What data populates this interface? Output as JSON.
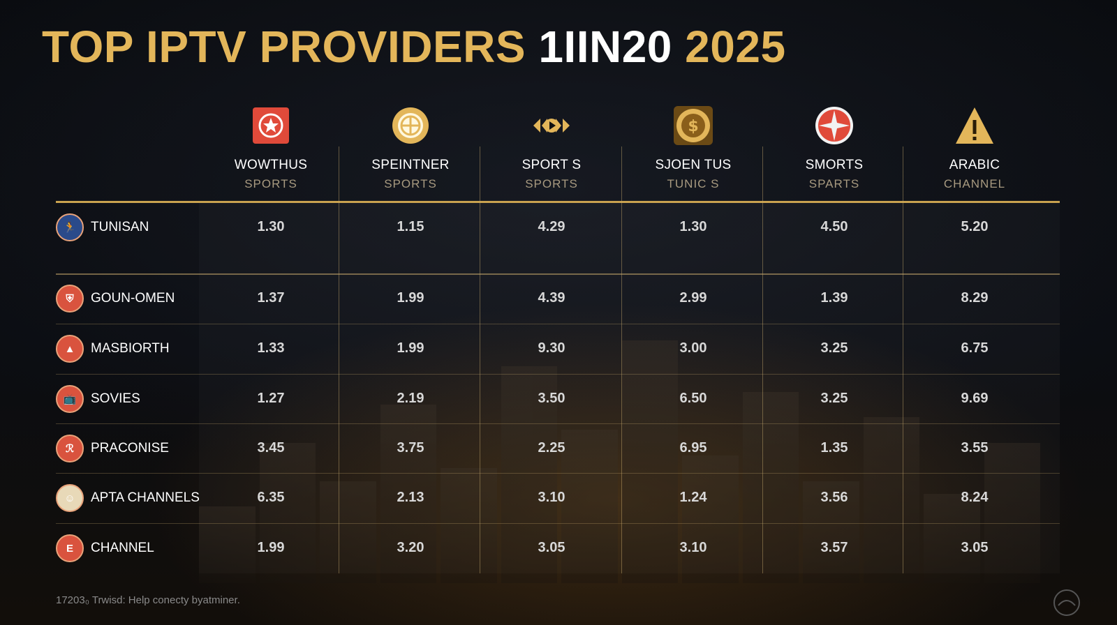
{
  "title": {
    "part1": "TOP IPTV PROVIDERS",
    "part2": "1IIN20",
    "part3": "2025"
  },
  "columns": [
    {
      "name": "WOWTHUS",
      "sub": "SPORTS",
      "icon": "star-badge-icon",
      "color": "#e04a3a"
    },
    {
      "name": "SPEINTNER",
      "sub": "SPORTS",
      "icon": "globe-emblem-icon",
      "color": "#e3b65a"
    },
    {
      "name": "SPORT S",
      "sub": "SPORTS",
      "icon": "play-wings-icon",
      "color": "#e3b65a"
    },
    {
      "name": "SJOEN TUS",
      "sub": "TUNIC S",
      "icon": "coin-emblem-icon",
      "color": "#e3b65a"
    },
    {
      "name": "SMORTS",
      "sub": "SPARTS",
      "icon": "compass-star-icon",
      "color": "#e04a3a"
    },
    {
      "name": "ARABIC",
      "sub": "CHANNEL",
      "icon": "warning-triangle-icon",
      "color": "#e3b65a"
    }
  ],
  "rows": [
    {
      "label": "TUNISAN",
      "icon": "runner-icon",
      "iconColor": "#2a4a8a",
      "values": [
        "1.30",
        "1.15",
        "4.29",
        "1.30",
        "4.50",
        "5.20"
      ]
    },
    {
      "label": "GOUN-OMEN",
      "icon": "shield-icon",
      "iconColor": "#d9533e",
      "values": [
        "1.37",
        "1.99",
        "4.39",
        "2.99",
        "1.39",
        "8.29"
      ]
    },
    {
      "label": "MASBIORTH",
      "icon": "triangle-logo-icon",
      "iconColor": "#d9533e",
      "values": [
        "1.33",
        "1.99",
        "9.30",
        "3.00",
        "3.25",
        "6.75"
      ]
    },
    {
      "label": "SOVIES",
      "icon": "tv-icon",
      "iconColor": "#d9533e",
      "values": [
        "1.27",
        "2.19",
        "3.50",
        "6.50",
        "3.25",
        "9.69"
      ]
    },
    {
      "label": "PRACONISE",
      "icon": "script-logo-icon",
      "iconColor": "#d9533e",
      "values": [
        "3.45",
        "3.75",
        "2.25",
        "6.95",
        "1.35",
        "3.55"
      ]
    },
    {
      "label": "APTA CHANNELS",
      "icon": "avatar-icon",
      "iconColor": "#e8d9b8",
      "values": [
        "6.35",
        "2.13",
        "3.10",
        "1.24",
        "3.56",
        "8.24"
      ]
    },
    {
      "label": "CHANNEL",
      "icon": "channel-logo-icon",
      "iconColor": "#d9533e",
      "values": [
        "1.99",
        "3.20",
        "3.05",
        "3.10",
        "3.57",
        "3.05"
      ]
    }
  ],
  "footer": "17203₀ Trwisd: Help conecty byatminer."
}
